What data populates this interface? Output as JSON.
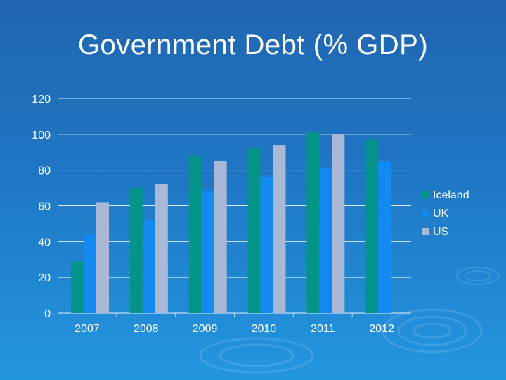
{
  "slide": {
    "title": "Government Debt (% GDP)"
  },
  "chart_data": {
    "type": "bar",
    "categories": [
      "2007",
      "2008",
      "2009",
      "2010",
      "2011",
      "2012"
    ],
    "series": [
      {
        "name": "Iceland",
        "values": [
          29,
          70,
          88,
          92,
          101,
          97
        ],
        "color": "#05948a"
      },
      {
        "name": "UK",
        "values": [
          44,
          52,
          68,
          76,
          81,
          85
        ],
        "color": "#128af0"
      },
      {
        "name": "US",
        "values": [
          62,
          72,
          85,
          94,
          100,
          null
        ],
        "color": "#a8b8d6"
      }
    ],
    "ylim": [
      0,
      120
    ],
    "yticks": [
      0,
      20,
      40,
      60,
      80,
      100,
      120
    ],
    "grid": true,
    "legend_position": "right"
  }
}
